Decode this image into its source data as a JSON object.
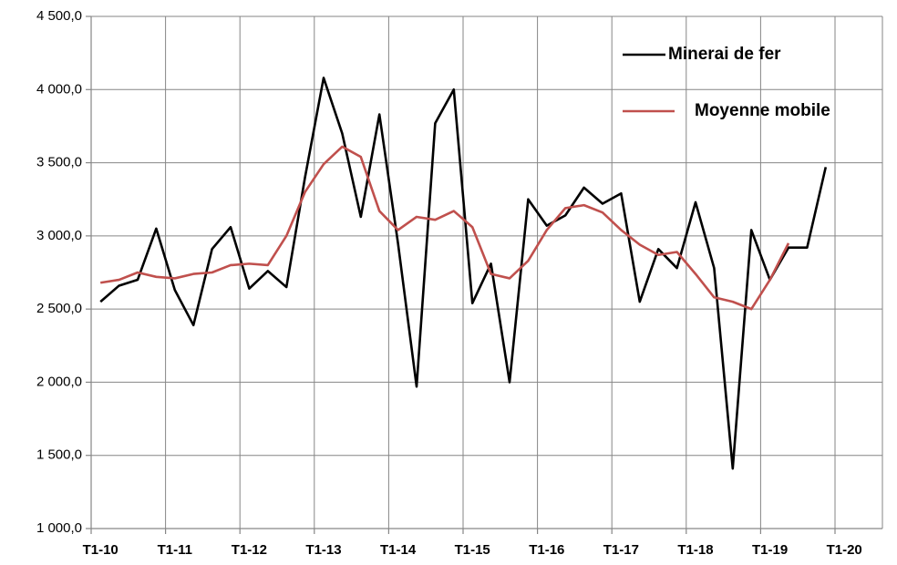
{
  "chart_data": {
    "type": "line",
    "categories": [
      "T1-10",
      null,
      null,
      null,
      "T1-11",
      null,
      null,
      null,
      "T1-12",
      null,
      null,
      null,
      "T1-13",
      null,
      null,
      null,
      "T1-14",
      null,
      null,
      null,
      "T1-15",
      null,
      null,
      null,
      "T1-16",
      null,
      null,
      null,
      "T1-17",
      null,
      null,
      null,
      "T1-18",
      null,
      null,
      null,
      "T1-19",
      null,
      null,
      null,
      "T1-20"
    ],
    "series": [
      {
        "name": "Minerai de fer",
        "color": "#000000",
        "values": [
          2550,
          2660,
          2700,
          3050,
          2630,
          2390,
          2910,
          3060,
          2640,
          2760,
          2650,
          3400,
          4080,
          3700,
          3130,
          3830,
          2950,
          1970,
          3770,
          4000,
          2540,
          2810,
          2000,
          3250,
          3070,
          3140,
          3330,
          3220,
          3290,
          2550,
          2910,
          2780,
          3230,
          2780,
          1410,
          3040,
          2700,
          2920,
          2920,
          3470,
          null
        ]
      },
      {
        "name": "Moyenne mobile",
        "color": "#c0504d",
        "values": [
          2680,
          2700,
          2750,
          2720,
          2710,
          2740,
          2750,
          2800,
          2810,
          2800,
          3000,
          3300,
          3490,
          3610,
          3540,
          3170,
          3040,
          3130,
          3110,
          3170,
          3060,
          2740,
          2710,
          2830,
          3040,
          3190,
          3210,
          3160,
          3040,
          2940,
          2870,
          2890,
          2740,
          2580,
          2550,
          2500,
          2700,
          2950,
          null,
          null,
          null
        ]
      }
    ],
    "ylim": [
      1000,
      4500
    ],
    "yticks": [
      {
        "value": 1000,
        "label": "1 000,0"
      },
      {
        "value": 1500,
        "label": "1 500,0"
      },
      {
        "value": 2000,
        "label": "2 000,0"
      },
      {
        "value": 2500,
        "label": "2 500,0"
      },
      {
        "value": 3000,
        "label": "3 000,0"
      },
      {
        "value": 3500,
        "label": "3 500,0"
      },
      {
        "value": 4000,
        "label": "4 000,0"
      },
      {
        "value": 4500,
        "label": "4 500,0"
      }
    ],
    "grid": true,
    "legend": "upper right"
  }
}
